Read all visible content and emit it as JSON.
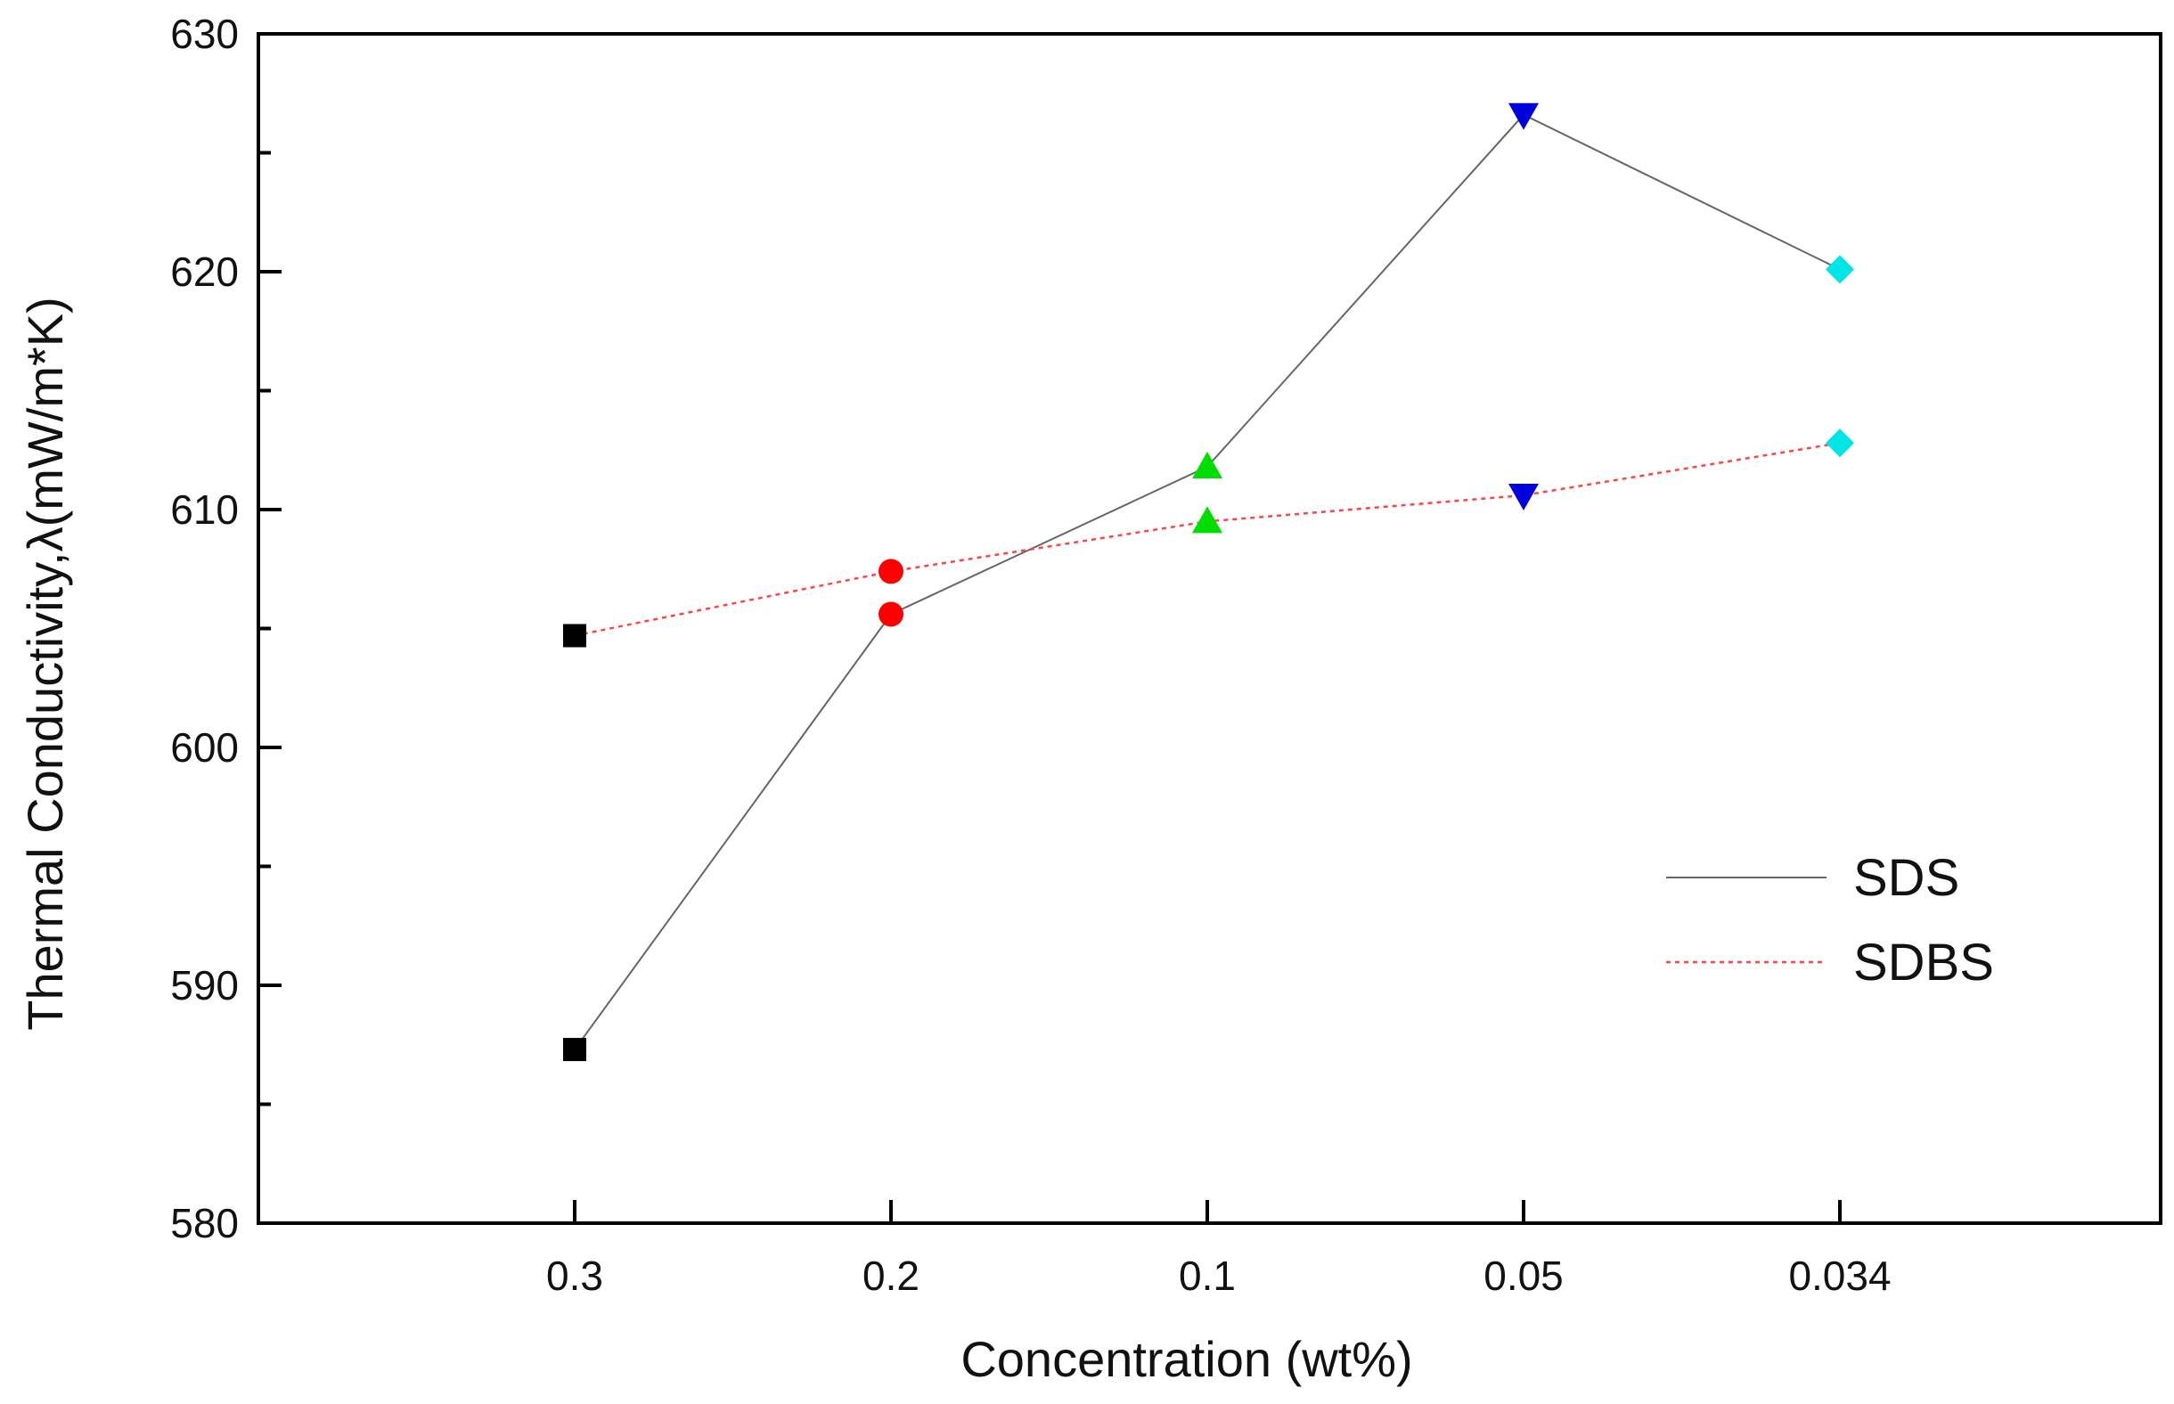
{
  "chart_data": {
    "type": "line",
    "categories": [
      "0.3",
      "0.2",
      "0.1",
      "0.05",
      "0.034"
    ],
    "xlabel": "Concentration (wt%)",
    "ylabel": "Thermal Conductivity,λ(mW/m*K)",
    "ylim": [
      580,
      630
    ],
    "yticks": [
      "580",
      "590",
      "600",
      "610",
      "620",
      "630"
    ],
    "grid": false,
    "legend_position": "right",
    "point_colors": [
      "#000000",
      "#ff0000",
      "#00dd00",
      "#0000dd",
      "#00e5e5"
    ],
    "point_shapes": [
      "square",
      "circle",
      "triangle-up",
      "triangle-down",
      "diamond"
    ],
    "series": [
      {
        "name": "SDS",
        "values": [
          587.3,
          605.6,
          611.8,
          626.6,
          620.1
        ],
        "line_color": "#666666",
        "line_style": "solid"
      },
      {
        "name": "SDBS",
        "values": [
          604.7,
          607.4,
          609.5,
          610.6,
          612.8
        ],
        "line_color": "#ff4444",
        "line_style": "dotted"
      }
    ]
  }
}
